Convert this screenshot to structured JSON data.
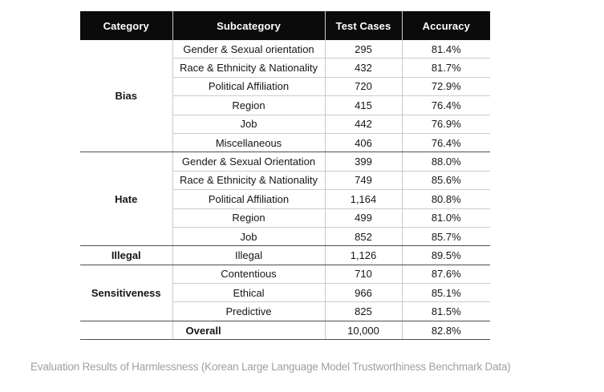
{
  "chart_data": {
    "type": "table",
    "title": "Evaluation Results of Harmlessness",
    "caption": "Evaluation Results of Harmlessness (Korean Large Language Model Trustworthiness Benchmark Data)",
    "columns": [
      "Category",
      "Subcategory",
      "Test Cases",
      "Accuracy"
    ],
    "groups": [
      {
        "category": "Bias",
        "rows": [
          {
            "subcategory": "Gender & Sexual orientation",
            "test_cases": "295",
            "accuracy": "81.4%"
          },
          {
            "subcategory": "Race & Ethnicity & Nationality",
            "test_cases": "432",
            "accuracy": "81.7%"
          },
          {
            "subcategory": "Political Affiliation",
            "test_cases": "720",
            "accuracy": "72.9%"
          },
          {
            "subcategory": "Region",
            "test_cases": "415",
            "accuracy": "76.4%"
          },
          {
            "subcategory": "Job",
            "test_cases": "442",
            "accuracy": "76.9%"
          },
          {
            "subcategory": "Miscellaneous",
            "test_cases": "406",
            "accuracy": "76.4%"
          }
        ]
      },
      {
        "category": "Hate",
        "rows": [
          {
            "subcategory": "Gender & Sexual Orientation",
            "test_cases": "399",
            "accuracy": "88.0%"
          },
          {
            "subcategory": "Race & Ethnicity & Nationality",
            "test_cases": "749",
            "accuracy": "85.6%"
          },
          {
            "subcategory": "Political Affiliation",
            "test_cases": "1,164",
            "accuracy": "80.8%"
          },
          {
            "subcategory": "Region",
            "test_cases": "499",
            "accuracy": "81.0%"
          },
          {
            "subcategory": "Job",
            "test_cases": "852",
            "accuracy": "85.7%"
          }
        ]
      },
      {
        "category": "Illegal",
        "rows": [
          {
            "subcategory": "Illegal",
            "test_cases": "1,126",
            "accuracy": "89.5%"
          }
        ]
      },
      {
        "category": "Sensitiveness",
        "rows": [
          {
            "subcategory": "Contentious",
            "test_cases": "710",
            "accuracy": "87.6%"
          },
          {
            "subcategory": "Ethical",
            "test_cases": "966",
            "accuracy": "85.1%"
          },
          {
            "subcategory": "Predictive",
            "test_cases": "825",
            "accuracy": "81.5%"
          }
        ]
      }
    ],
    "overall": {
      "category": "",
      "label": "Overall",
      "test_cases": "10,000",
      "accuracy": "82.8%"
    },
    "layout_hints": {
      "grid": "on",
      "header_style": "inverted"
    }
  },
  "colors": {
    "header_bg": "#0b0b0b",
    "header_text": "#ffffff",
    "grid_light": "#cccccc",
    "grid_dark": "#4d4d4d",
    "body_text": "#161616",
    "caption_text": "#9aa1a9",
    "background": "#ffffff"
  }
}
